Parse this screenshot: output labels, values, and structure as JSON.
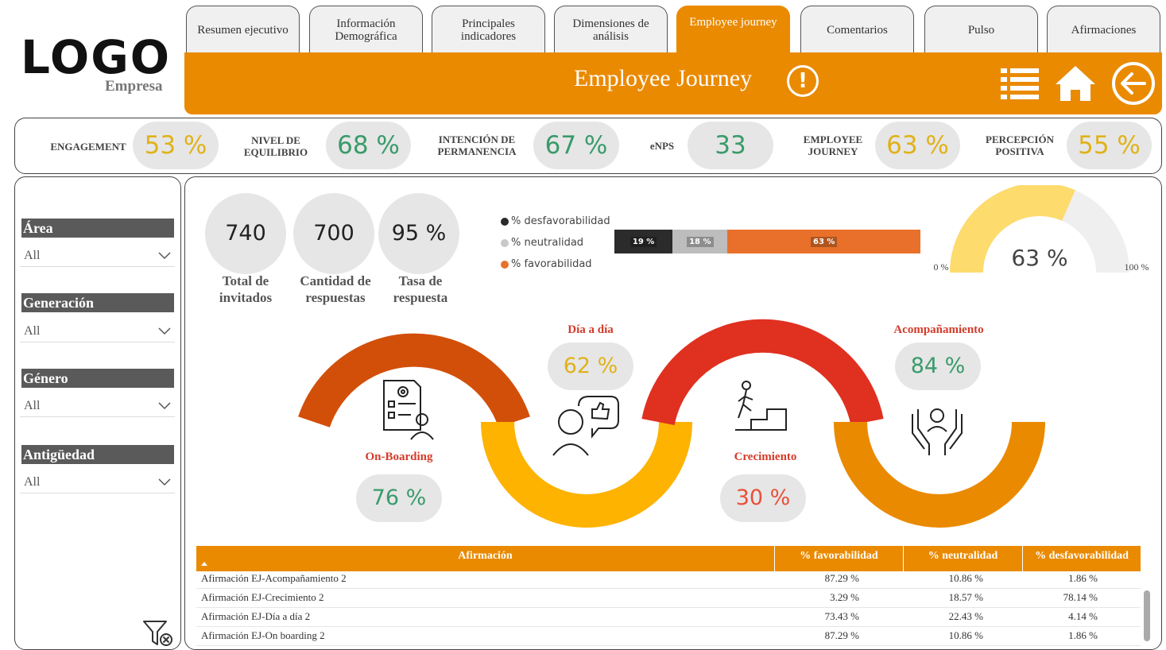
{
  "logo": {
    "text": "LOGO",
    "subtitle": "Empresa"
  },
  "tabs": [
    {
      "label": "Resumen ejecutivo",
      "active": false
    },
    {
      "label": "Información Demográfica",
      "active": false
    },
    {
      "label": "Principales indicadores",
      "active": false
    },
    {
      "label": "Dimensiones de análisis",
      "active": false
    },
    {
      "label": "Employee journey",
      "active": true
    },
    {
      "label": "Comentarios",
      "active": false
    },
    {
      "label": "Pulso",
      "active": false
    },
    {
      "label": "Afirmaciones",
      "active": false
    }
  ],
  "header": {
    "title": "Employee Journey",
    "info_symbol": "!"
  },
  "colors": {
    "accent": "#ea8a00",
    "yellow": "#e0b21a",
    "green": "#3a9b6a",
    "red": "#e8503a"
  },
  "kpis": [
    {
      "label": "ENGAGEMENT",
      "value": "53 %",
      "color": "yellow"
    },
    {
      "label": "NIVEL DE EQUILIBRIO",
      "value": "68 %",
      "color": "green"
    },
    {
      "label": "INTENCIÓN DE PERMANENCIA",
      "value": "67 %",
      "color": "green"
    },
    {
      "label": "eNPS",
      "value": "33",
      "color": "green"
    },
    {
      "label": "EMPLOYEE JOURNEY",
      "value": "63 %",
      "color": "yellow"
    },
    {
      "label": "PERCEPCIÓN POSITIVA",
      "value": "55 %",
      "color": "yellow"
    }
  ],
  "filters": [
    {
      "title": "Área",
      "value": "All"
    },
    {
      "title": "Generación",
      "value": "All"
    },
    {
      "title": "Género",
      "value": "All"
    },
    {
      "title": "Antigüedad",
      "value": "All"
    }
  ],
  "stats": [
    {
      "value": "740",
      "label": "Total de invitados"
    },
    {
      "value": "700",
      "label": "Cantidad de respuestas"
    },
    {
      "value": "95 %",
      "label": "Tasa de respuesta"
    }
  ],
  "legend": [
    {
      "label": "% desfavorabilidad",
      "color": "#2b2b2b"
    },
    {
      "label": "% neutralidad",
      "color": "#c8c8c8"
    },
    {
      "label": "% favorabilidad",
      "color": "#e8702a"
    }
  ],
  "stacked_bar": [
    {
      "label": "19 %",
      "value": 19,
      "color": "#2b2b2b"
    },
    {
      "label": "18 %",
      "value": 18,
      "color": "#bdbdbd"
    },
    {
      "label": "63 %",
      "value": 63,
      "color": "#e8702a"
    }
  ],
  "gauge": {
    "value": 63,
    "label": "63 %",
    "min_label": "0 %",
    "max_label": "100 %",
    "fill_color": "#fddb6d",
    "track_color": "#efefef"
  },
  "journey": [
    {
      "name": "On-Boarding",
      "value": "76 %",
      "color": "green",
      "arc_color": "#d24f0a"
    },
    {
      "name": "Día a día",
      "value": "62 %",
      "color": "yellow",
      "arc_color": "#fdb300"
    },
    {
      "name": "Crecimiento",
      "value": "30 %",
      "color": "red",
      "arc_color": "#e03020"
    },
    {
      "name": "Acompañamiento",
      "value": "84 %",
      "color": "green",
      "arc_color": "#ea8a00"
    }
  ],
  "table": {
    "columns": [
      "Afirmación",
      "% favorabilidad",
      "% neutralidad",
      "% desfavorabilidad"
    ],
    "rows": [
      [
        "Afirmación EJ-Acompañamiento 2",
        "87.29 %",
        "10.86 %",
        "1.86 %"
      ],
      [
        "Afirmación EJ-Crecimiento 2",
        "3.29 %",
        "18.57 %",
        "78.14 %"
      ],
      [
        "Afirmación EJ-Día a día 2",
        "73.43 %",
        "22.43 %",
        "4.14 %"
      ],
      [
        "Afirmación EJ-On boarding 2",
        "87.29 %",
        "10.86 %",
        "1.86 %"
      ]
    ]
  }
}
